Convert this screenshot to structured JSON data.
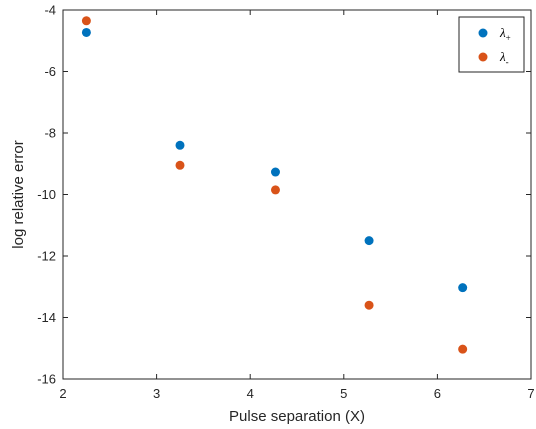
{
  "chart_data": {
    "type": "scatter",
    "xlabel": "Pulse separation (X)",
    "ylabel": "log relative error",
    "xlim": [
      2,
      7
    ],
    "ylim": [
      -16,
      -4
    ],
    "xticks": [
      2,
      3,
      4,
      5,
      6,
      7
    ],
    "yticks": [
      -16,
      -14,
      -12,
      -10,
      -8,
      -6,
      -4
    ],
    "grid": false,
    "legend_position": "top-right",
    "series": [
      {
        "name": "λ+",
        "symbol": "λ",
        "subscript": "+",
        "color": "#0072BD",
        "x": [
          2.25,
          3.25,
          4.27,
          5.27,
          6.27
        ],
        "y": [
          -4.73,
          -8.4,
          -9.27,
          -11.5,
          -13.03
        ]
      },
      {
        "name": "λ-",
        "symbol": "λ",
        "subscript": "-",
        "color": "#D95319",
        "x": [
          2.25,
          3.25,
          4.27,
          5.27,
          6.27
        ],
        "y": [
          -4.35,
          -9.05,
          -9.85,
          -13.6,
          -15.03
        ]
      }
    ]
  }
}
